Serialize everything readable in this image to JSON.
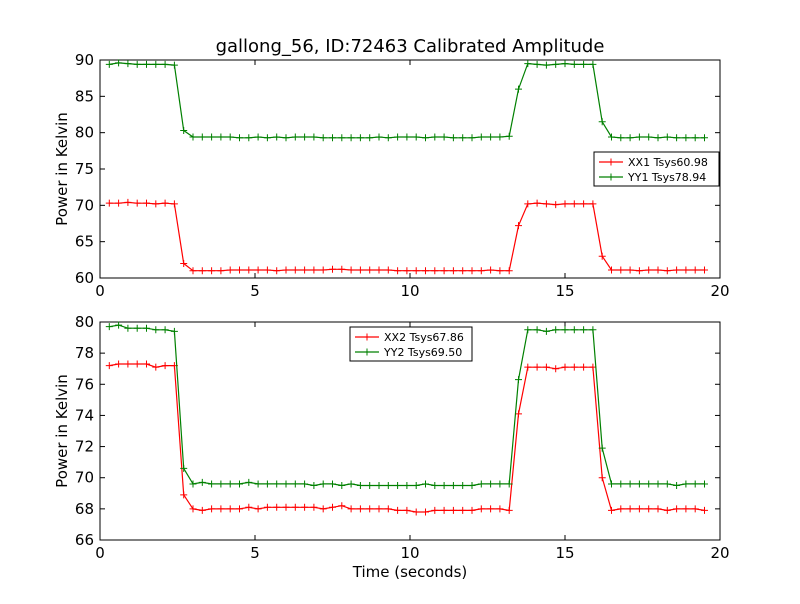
{
  "chart_data": [
    {
      "type": "line",
      "title": "gallong_56, ID:72463 Calibrated Amplitude",
      "xlabel": "",
      "ylabel": "Power in Kelvin",
      "xlim": [
        0,
        20
      ],
      "ylim": [
        60,
        90
      ],
      "xticks": [
        "0",
        "5",
        "10",
        "15",
        "20"
      ],
      "yticks": [
        "60",
        "65",
        "70",
        "75",
        "80",
        "85",
        "90"
      ],
      "legend_position": "center-right",
      "x": [
        0.3,
        0.6,
        0.9,
        1.2,
        1.5,
        1.8,
        2.1,
        2.4,
        2.7,
        3.0,
        3.3,
        3.6,
        3.9,
        4.2,
        4.5,
        4.8,
        5.1,
        5.4,
        5.7,
        6.0,
        6.3,
        6.6,
        6.9,
        7.2,
        7.5,
        7.8,
        8.1,
        8.4,
        8.7,
        9.0,
        9.3,
        9.6,
        9.9,
        10.2,
        10.5,
        10.8,
        11.1,
        11.4,
        11.7,
        12.0,
        12.3,
        12.6,
        12.9,
        13.2,
        13.5,
        13.8,
        14.1,
        14.4,
        14.7,
        15.0,
        15.3,
        15.6,
        15.9,
        16.2,
        16.5,
        16.8,
        17.1,
        17.4,
        17.7,
        18.0,
        18.3,
        18.6,
        18.9,
        19.2,
        19.5
      ],
      "series": [
        {
          "name": "XX1 Tsys60.98",
          "color": "#ff0000",
          "values": [
            70.3,
            70.3,
            70.4,
            70.3,
            70.3,
            70.2,
            70.3,
            70.2,
            62.0,
            61.0,
            61.0,
            61.0,
            61.0,
            61.1,
            61.1,
            61.1,
            61.1,
            61.1,
            61.0,
            61.1,
            61.1,
            61.1,
            61.1,
            61.1,
            61.2,
            61.2,
            61.1,
            61.1,
            61.1,
            61.1,
            61.1,
            61.0,
            61.0,
            61.0,
            61.0,
            61.0,
            61.0,
            61.0,
            61.0,
            61.0,
            61.0,
            61.1,
            61.0,
            61.0,
            67.2,
            70.2,
            70.3,
            70.2,
            70.1,
            70.2,
            70.2,
            70.2,
            70.2,
            63.0,
            61.1,
            61.1,
            61.1,
            61.0,
            61.1,
            61.1,
            61.0,
            61.1,
            61.1,
            61.1,
            61.1
          ]
        },
        {
          "name": "YY1 Tsys78.94",
          "color": "#008000",
          "values": [
            89.4,
            89.6,
            89.5,
            89.4,
            89.4,
            89.4,
            89.4,
            89.3,
            80.3,
            79.4,
            79.4,
            79.4,
            79.4,
            79.4,
            79.3,
            79.3,
            79.4,
            79.3,
            79.4,
            79.3,
            79.4,
            79.4,
            79.4,
            79.3,
            79.3,
            79.3,
            79.3,
            79.3,
            79.3,
            79.4,
            79.3,
            79.4,
            79.4,
            79.4,
            79.3,
            79.4,
            79.4,
            79.3,
            79.3,
            79.3,
            79.4,
            79.4,
            79.4,
            79.5,
            86.0,
            89.5,
            89.4,
            89.3,
            89.4,
            89.5,
            89.4,
            89.4,
            89.4,
            81.5,
            79.4,
            79.3,
            79.3,
            79.4,
            79.4,
            79.3,
            79.4,
            79.3,
            79.3,
            79.3,
            79.3
          ]
        }
      ]
    },
    {
      "type": "line",
      "title": "",
      "xlabel": "Time (seconds)",
      "ylabel": "Power in Kelvin",
      "xlim": [
        0,
        20
      ],
      "ylim": [
        66,
        80
      ],
      "xticks": [
        "0",
        "5",
        "10",
        "15",
        "20"
      ],
      "yticks": [
        "66",
        "68",
        "70",
        "72",
        "74",
        "76",
        "78",
        "80"
      ],
      "legend_position": "upper-center",
      "x": [
        0.3,
        0.6,
        0.9,
        1.2,
        1.5,
        1.8,
        2.1,
        2.4,
        2.7,
        3.0,
        3.3,
        3.6,
        3.9,
        4.2,
        4.5,
        4.8,
        5.1,
        5.4,
        5.7,
        6.0,
        6.3,
        6.6,
        6.9,
        7.2,
        7.5,
        7.8,
        8.1,
        8.4,
        8.7,
        9.0,
        9.3,
        9.6,
        9.9,
        10.2,
        10.5,
        10.8,
        11.1,
        11.4,
        11.7,
        12.0,
        12.3,
        12.6,
        12.9,
        13.2,
        13.5,
        13.8,
        14.1,
        14.4,
        14.7,
        15.0,
        15.3,
        15.6,
        15.9,
        16.2,
        16.5,
        16.8,
        17.1,
        17.4,
        17.7,
        18.0,
        18.3,
        18.6,
        18.9,
        19.2,
        19.5
      ],
      "series": [
        {
          "name": "XX2 Tsys67.86",
          "color": "#ff0000",
          "values": [
            77.2,
            77.3,
            77.3,
            77.3,
            77.3,
            77.1,
            77.2,
            77.2,
            68.9,
            68.0,
            67.9,
            68.0,
            68.0,
            68.0,
            68.0,
            68.1,
            68.0,
            68.1,
            68.1,
            68.1,
            68.1,
            68.1,
            68.1,
            68.0,
            68.1,
            68.2,
            68.0,
            68.0,
            68.0,
            68.0,
            68.0,
            67.9,
            67.9,
            67.8,
            67.8,
            67.9,
            67.9,
            67.9,
            67.9,
            67.9,
            68.0,
            68.0,
            68.0,
            67.9,
            74.1,
            77.1,
            77.1,
            77.1,
            77.0,
            77.1,
            77.1,
            77.1,
            77.1,
            70.0,
            67.9,
            68.0,
            68.0,
            68.0,
            68.0,
            68.0,
            67.9,
            68.0,
            68.0,
            68.0,
            67.9
          ]
        },
        {
          "name": "YY2 Tsys69.50",
          "color": "#008000",
          "values": [
            79.7,
            79.8,
            79.6,
            79.6,
            79.6,
            79.5,
            79.5,
            79.4,
            70.6,
            69.6,
            69.7,
            69.6,
            69.6,
            69.6,
            69.6,
            69.7,
            69.6,
            69.6,
            69.6,
            69.6,
            69.6,
            69.6,
            69.5,
            69.6,
            69.6,
            69.5,
            69.6,
            69.5,
            69.5,
            69.5,
            69.5,
            69.5,
            69.5,
            69.5,
            69.6,
            69.5,
            69.5,
            69.5,
            69.5,
            69.5,
            69.6,
            69.6,
            69.6,
            69.6,
            76.3,
            79.5,
            79.5,
            79.4,
            79.5,
            79.5,
            79.5,
            79.5,
            79.5,
            71.9,
            69.6,
            69.6,
            69.6,
            69.6,
            69.6,
            69.6,
            69.6,
            69.5,
            69.6,
            69.6,
            69.6
          ]
        }
      ]
    }
  ]
}
